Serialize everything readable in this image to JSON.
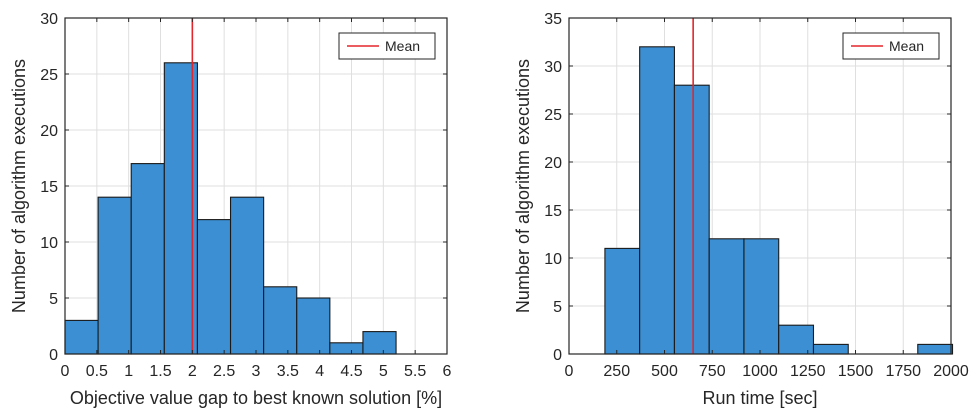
{
  "chart_data": [
    {
      "type": "bar",
      "title": "",
      "xlabel": "Objective value gap to best known solution [%]",
      "ylabel": "Number of algorithm executions",
      "xlim": [
        0,
        6
      ],
      "ylim": [
        0,
        30
      ],
      "xticks": [
        0,
        0.5,
        1,
        1.5,
        2,
        2.5,
        3,
        3.5,
        4,
        4.5,
        5,
        5.5,
        6
      ],
      "xtick_labels": [
        "0",
        "0.5",
        "1",
        "1.5",
        "2",
        "2.5",
        "3",
        "3.5",
        "4",
        "4.5",
        "5",
        "5.5",
        "6"
      ],
      "yticks": [
        0,
        5,
        10,
        15,
        20,
        25,
        30
      ],
      "ytick_labels": [
        "0",
        "5",
        "10",
        "15",
        "20",
        "25",
        "30"
      ],
      "bins": [
        {
          "x0": 0.0,
          "x1": 0.52,
          "count": 3
        },
        {
          "x0": 0.52,
          "x1": 1.04,
          "count": 14
        },
        {
          "x0": 1.04,
          "x1": 1.56,
          "count": 17
        },
        {
          "x0": 1.56,
          "x1": 2.08,
          "count": 26
        },
        {
          "x0": 2.08,
          "x1": 2.6,
          "count": 12
        },
        {
          "x0": 2.6,
          "x1": 3.12,
          "count": 14
        },
        {
          "x0": 3.12,
          "x1": 3.64,
          "count": 6
        },
        {
          "x0": 3.64,
          "x1": 4.16,
          "count": 5
        },
        {
          "x0": 4.16,
          "x1": 4.68,
          "count": 1
        },
        {
          "x0": 4.68,
          "x1": 5.2,
          "count": 2
        }
      ],
      "mean": 2.0,
      "legend": {
        "label": "Mean",
        "position": "top-right"
      },
      "grid": true,
      "colors": {
        "bar": "#3c8fd2",
        "mean": "#e3262b"
      }
    },
    {
      "type": "bar",
      "title": "",
      "xlabel": "Run time [sec]",
      "ylabel": "Number of algorithm executions",
      "xlim": [
        0,
        2000
      ],
      "ylim": [
        0,
        35
      ],
      "xticks": [
        0,
        250,
        500,
        750,
        1000,
        1250,
        1500,
        1750,
        2000
      ],
      "xtick_labels": [
        "0",
        "250",
        "500",
        "750",
        "1000",
        "1250",
        "1500",
        "1750",
        "2000"
      ],
      "yticks": [
        0,
        5,
        10,
        15,
        20,
        25,
        30,
        35
      ],
      "ytick_labels": [
        "0",
        "5",
        "10",
        "15",
        "20",
        "25",
        "30",
        "35"
      ],
      "bins": [
        {
          "x0": 188,
          "x1": 370,
          "count": 11
        },
        {
          "x0": 370,
          "x1": 552,
          "count": 32
        },
        {
          "x0": 552,
          "x1": 734,
          "count": 28
        },
        {
          "x0": 734,
          "x1": 916,
          "count": 12
        },
        {
          "x0": 916,
          "x1": 1098,
          "count": 12
        },
        {
          "x0": 1098,
          "x1": 1280,
          "count": 3
        },
        {
          "x0": 1280,
          "x1": 1462,
          "count": 1
        },
        {
          "x0": 1462,
          "x1": 1644,
          "count": 0
        },
        {
          "x0": 1644,
          "x1": 1826,
          "count": 0
        },
        {
          "x0": 1826,
          "x1": 2008,
          "count": 1
        }
      ],
      "mean": 650,
      "legend": {
        "label": "Mean",
        "position": "top-right"
      },
      "grid": true,
      "colors": {
        "bar": "#3c8fd2",
        "mean": "#e3262b"
      }
    }
  ]
}
